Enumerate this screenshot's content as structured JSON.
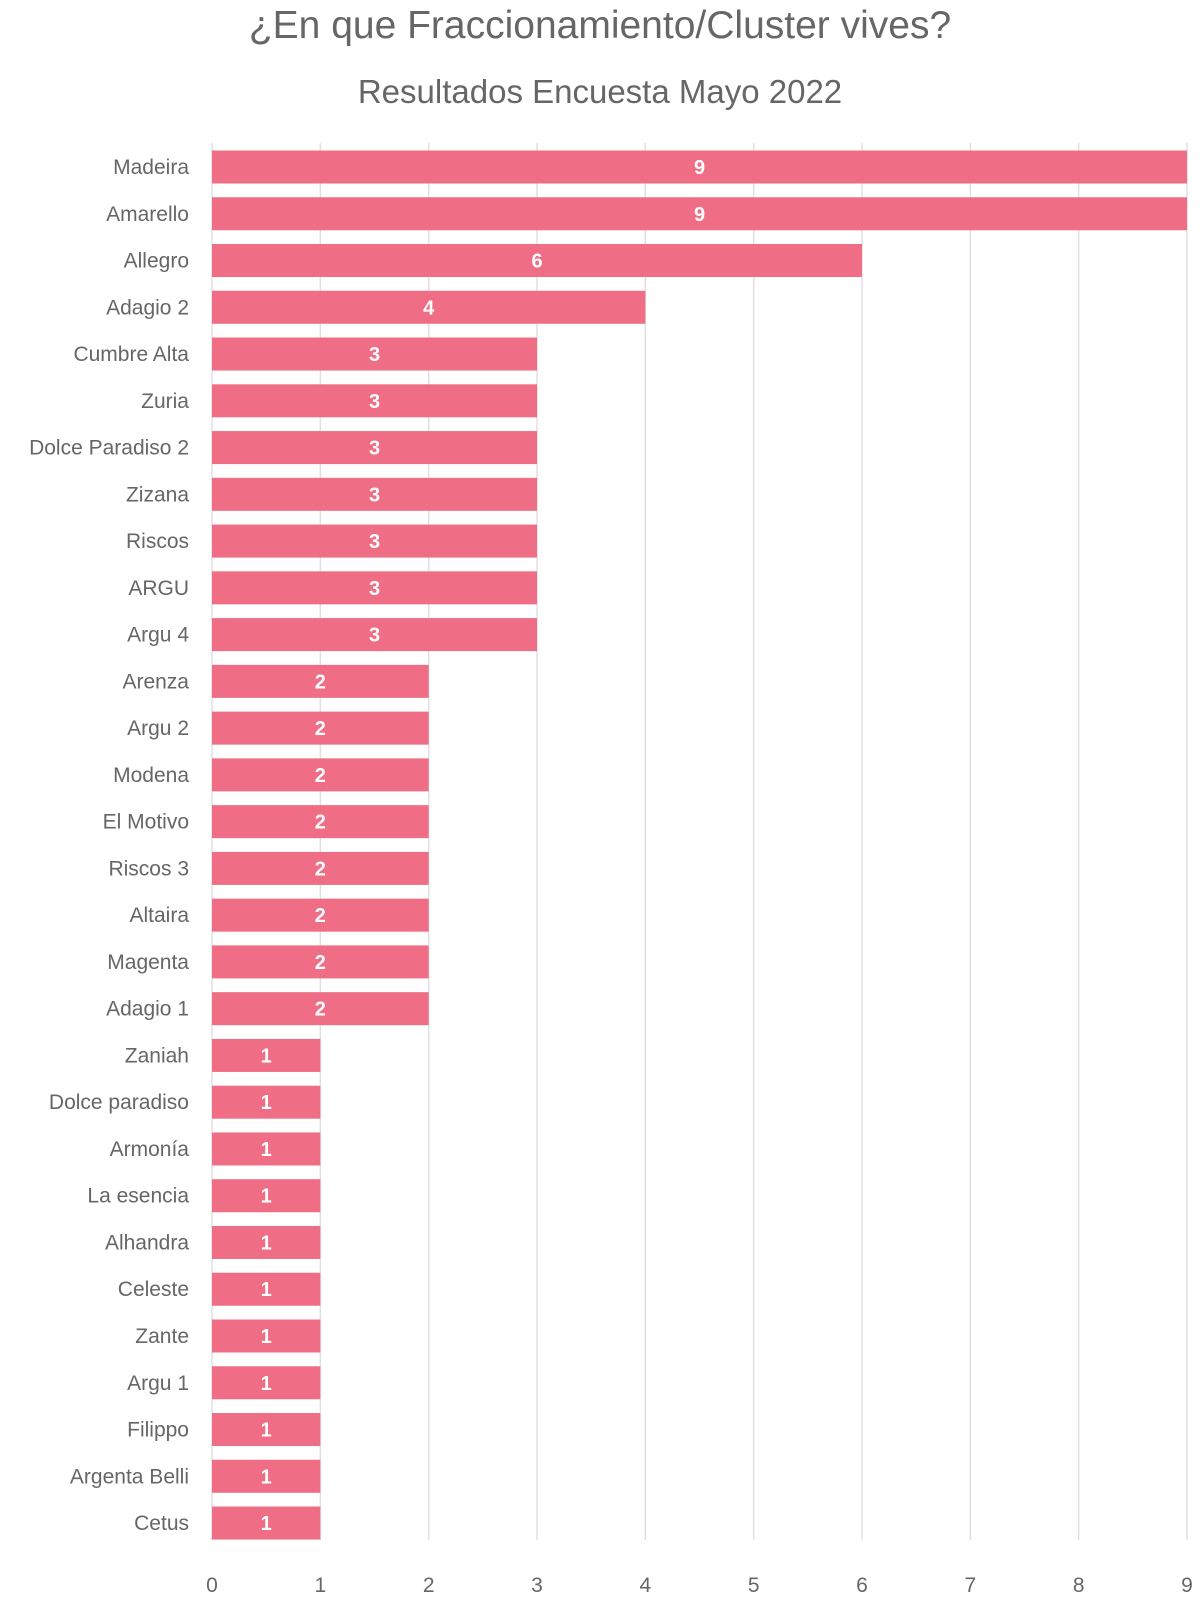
{
  "chart_data": {
    "type": "bar",
    "orientation": "horizontal",
    "title": "¿En que Fraccionamiento/Cluster vives?",
    "subtitle": "Resultados Encuesta Mayo 2022",
    "categories": [
      "Madeira",
      "Amarello",
      "Allegro",
      "Adagio 2",
      "Cumbre Alta",
      "Zuria",
      "Dolce Paradiso 2",
      "Zizana",
      "Riscos",
      "ARGU",
      "Argu 4",
      "Arenza",
      "Argu 2",
      "Modena",
      "El Motivo",
      "Riscos 3",
      "Altaira",
      "Magenta",
      "Adagio 1",
      "Zaniah",
      "Dolce paradiso",
      "Armonía",
      "La esencia",
      "Alhandra",
      "Celeste",
      "Zante",
      "Argu 1",
      "Filippo",
      "Argenta Belli",
      "Cetus"
    ],
    "values": [
      9,
      9,
      6,
      4,
      3,
      3,
      3,
      3,
      3,
      3,
      3,
      2,
      2,
      2,
      2,
      2,
      2,
      2,
      2,
      1,
      1,
      1,
      1,
      1,
      1,
      1,
      1,
      1,
      1,
      1
    ],
    "xlim": [
      0,
      9
    ],
    "xticks": [
      "0",
      "1",
      "2",
      "3",
      "4",
      "5",
      "6",
      "7",
      "8",
      "9"
    ],
    "grid": true,
    "legend": "none",
    "data_labels": true,
    "bar_color": "#ef6d85",
    "label_color": "#ffffff",
    "text_color": "#666666"
  }
}
